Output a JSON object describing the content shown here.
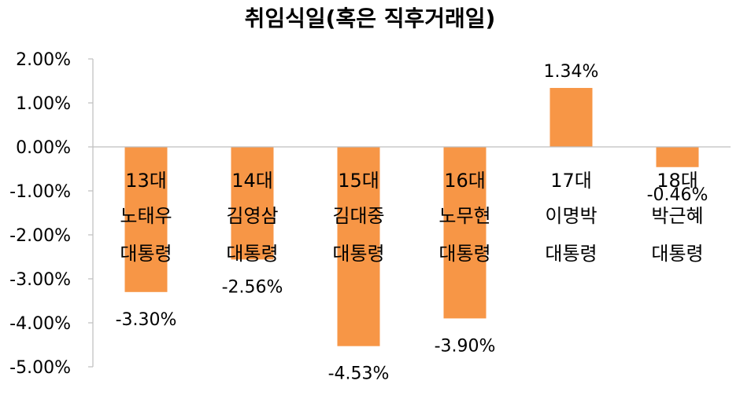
{
  "chart_data": {
    "type": "bar",
    "title": "취임식일(혹은 직후거래일)",
    "categories": [
      [
        "13대",
        "노태우",
        "대통령"
      ],
      [
        "14대",
        "김영삼",
        "대통령"
      ],
      [
        "15대",
        "김대중",
        "대통령"
      ],
      [
        "16대",
        "노무현",
        "대통령"
      ],
      [
        "17대",
        "이명박",
        "대통령"
      ],
      [
        "18대",
        "박근혜",
        "대통령"
      ]
    ],
    "values": [
      -3.3,
      -2.56,
      -4.53,
      -3.9,
      1.34,
      -0.46
    ],
    "data_labels": [
      "-3.30%",
      "-2.56%",
      "-4.53%",
      "-3.90%",
      "1.34%",
      "-0.46%"
    ],
    "y_ticks": [
      2,
      1,
      0,
      -1,
      -2,
      -3,
      -4,
      -5
    ],
    "y_tick_labels": [
      "2.00%",
      "1.00%",
      "0.00%",
      "-1.00%",
      "-2.00%",
      "-3.00%",
      "-4.00%",
      "-5.00%"
    ],
    "ylim": [
      -5,
      2
    ],
    "xlabel": "",
    "ylabel": "",
    "bar_color": "#f79646",
    "grid": false,
    "legend": "none"
  }
}
